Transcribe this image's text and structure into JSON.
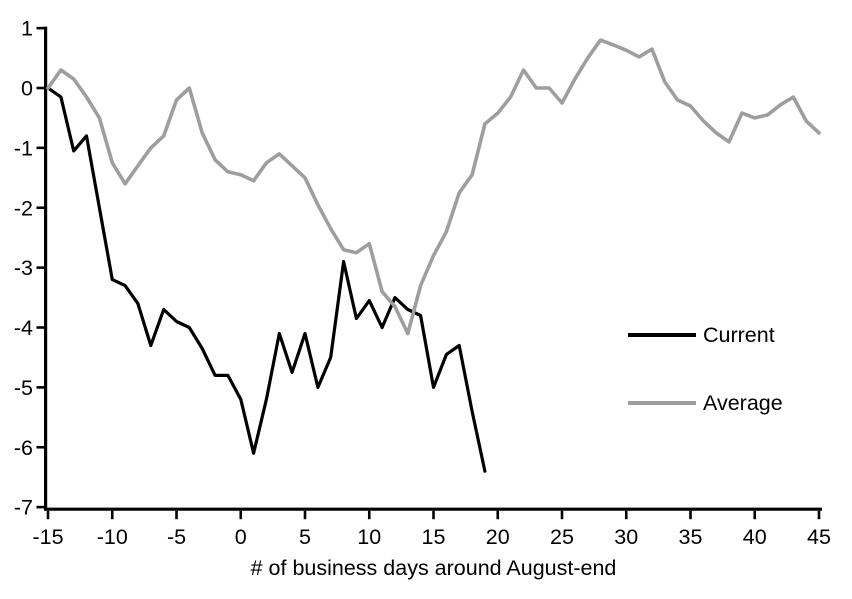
{
  "chart_data": {
    "type": "line",
    "title": "",
    "xlabel": "# of business days around August-end",
    "ylabel": "",
    "x_start": -15,
    "x_end": 45,
    "x_ticks": [
      -15,
      -10,
      -5,
      0,
      5,
      10,
      15,
      20,
      25,
      30,
      35,
      40,
      45
    ],
    "y_ticks": [
      1,
      0,
      -1,
      -2,
      -3,
      -4,
      -5,
      -6,
      -7
    ],
    "ylim": [
      -7,
      1
    ],
    "grid": false,
    "legend_position": "middle-right",
    "axis_color": "#000000",
    "series": [
      {
        "name": "Current",
        "color": "#000000",
        "x_start": -15,
        "values": [
          0,
          -0.15,
          -1.05,
          -0.8,
          -2.0,
          -3.2,
          -3.3,
          -3.6,
          -4.3,
          -3.7,
          -3.9,
          -4.0,
          -4.35,
          -4.8,
          -4.8,
          -5.2,
          -6.1,
          -5.2,
          -4.1,
          -4.75,
          -4.1,
          -5.0,
          -4.5,
          -2.9,
          -3.85,
          -3.55,
          -4.0,
          -3.5,
          -3.7,
          -3.8,
          -5.0,
          -4.45,
          -4.3,
          -5.4,
          -6.4
        ]
      },
      {
        "name": "Average",
        "color": "#9E9E9E",
        "x_start": -15,
        "values": [
          0,
          0.3,
          0.15,
          -0.15,
          -0.5,
          -1.25,
          -1.6,
          -1.3,
          -1.0,
          -0.8,
          -0.2,
          0.0,
          -0.75,
          -1.2,
          -1.4,
          -1.45,
          -1.55,
          -1.25,
          -1.1,
          -1.3,
          -1.5,
          -1.95,
          -2.35,
          -2.7,
          -2.75,
          -2.6,
          -3.4,
          -3.65,
          -4.1,
          -3.3,
          -2.8,
          -2.4,
          -1.75,
          -1.45,
          -0.6,
          -0.42,
          -0.15,
          0.3,
          0.0,
          0.0,
          -0.25,
          0.15,
          0.5,
          0.8,
          0.72,
          0.63,
          0.52,
          0.65,
          0.1,
          -0.2,
          -0.3,
          -0.55,
          -0.75,
          -0.9,
          -0.42,
          -0.5,
          -0.45,
          -0.28,
          -0.15,
          -0.55,
          -0.75
        ]
      }
    ]
  }
}
